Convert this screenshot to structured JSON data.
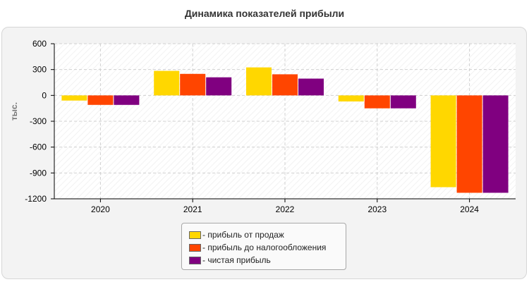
{
  "chart_data": {
    "type": "bar",
    "title": "Динамика показателей прибыли",
    "ylabel": "тыс.",
    "xlabel": "",
    "categories": [
      "2020",
      "2021",
      "2022",
      "2023",
      "2024"
    ],
    "ylim": [
      -1200,
      600
    ],
    "yticks": [
      600,
      300,
      0,
      -300,
      -600,
      -900,
      -1200
    ],
    "grid": true,
    "legend_position": "bottom",
    "series": [
      {
        "name": "прибыль от продаж",
        "color": "#FFD700",
        "values": [
          -60,
          285,
          325,
          -70,
          -1065
        ]
      },
      {
        "name": "прибыль до налогообложения",
        "color": "#FF4500",
        "values": [
          -110,
          250,
          245,
          -150,
          -1130
        ]
      },
      {
        "name": "чистая прибыль",
        "color": "#800080",
        "values": [
          -110,
          210,
          195,
          -150,
          -1130
        ]
      }
    ]
  }
}
